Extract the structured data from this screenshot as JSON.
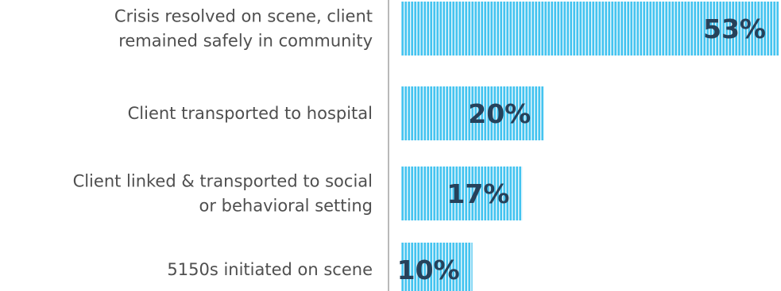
{
  "chart_data": {
    "type": "bar",
    "orientation": "horizontal",
    "categories": [
      [
        "Crisis resolved on scene, client",
        "remained safely in community"
      ],
      [
        "Client transported to hospital"
      ],
      [
        "Client linked & transported to social",
        "or behavioral setting"
      ],
      [
        "5150s initiated on scene"
      ]
    ],
    "values": [
      53,
      20,
      17,
      10
    ],
    "value_labels": [
      "53%",
      "20%",
      "17%",
      "10%"
    ],
    "unit": "%",
    "xlim": [
      0,
      53
    ],
    "bar_color": "#45c4f0",
    "bar_stripe_color": "#e9f8fd",
    "axis_color": "#b9b9b9",
    "label_color": "#4f4f4f",
    "value_label_color": "#26415a",
    "grid": false,
    "legend": "none"
  }
}
